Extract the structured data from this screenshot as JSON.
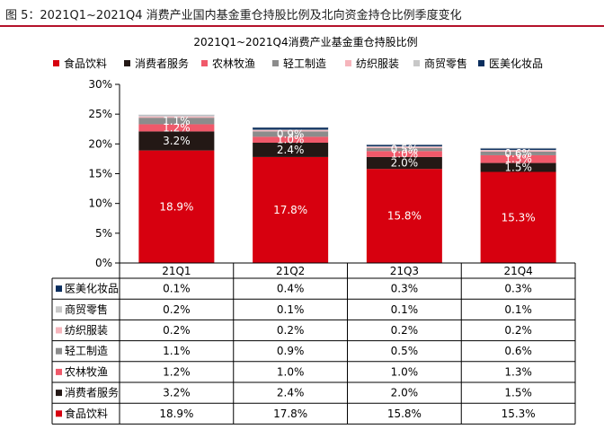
{
  "figure_caption": "图 5：2021Q1~2021Q4 消费产业国内基金重仓持股比例及北向资金持仓比例季度变化",
  "chart_data": {
    "type": "bar",
    "stacked": true,
    "title": "2021Q1~2021Q4消费产业基金重仓持股比例",
    "categories": [
      "21Q1",
      "21Q2",
      "21Q3",
      "21Q4"
    ],
    "ylim": [
      0,
      30
    ],
    "y_ticks": [
      "0%",
      "5%",
      "10%",
      "15%",
      "20%",
      "25%",
      "30%"
    ],
    "grid": false,
    "legend_position": "top",
    "series": [
      {
        "name": "食品饮料",
        "values": [
          18.9,
          17.8,
          15.8,
          15.3
        ],
        "labels": [
          "18.9%",
          "17.8%",
          "15.8%",
          "15.3%"
        ],
        "color": "#d7000f"
      },
      {
        "name": "消费者服务",
        "values": [
          3.2,
          2.4,
          2.0,
          1.5
        ],
        "labels": [
          "3.2%",
          "2.4%",
          "2.0%",
          "1.5%"
        ],
        "color": "#231815"
      },
      {
        "name": "农林牧渔",
        "values": [
          1.2,
          1.0,
          1.0,
          1.3
        ],
        "labels": [
          "1.2%",
          "1.0%",
          "1.0%",
          "1.3%"
        ],
        "color": "#f0596a"
      },
      {
        "name": "轻工制造",
        "values": [
          1.1,
          0.9,
          0.5,
          0.6
        ],
        "labels": [
          "1.1%",
          "0.9%",
          "0.5%",
          "0.6%"
        ],
        "color": "#8c8c8c"
      },
      {
        "name": "纺织服装",
        "values": [
          0.2,
          0.2,
          0.2,
          0.2
        ],
        "labels": [
          "0.2%",
          "0.2%",
          "0.2%",
          "0.2%"
        ],
        "color": "#f6b5bc"
      },
      {
        "name": "商贸零售",
        "values": [
          0.2,
          0.1,
          0.1,
          0.1
        ],
        "labels": [
          "0.2%",
          "0.1%",
          "0.1%",
          "0.1%"
        ],
        "color": "#c8c8c8"
      },
      {
        "name": "医美化妆品",
        "values": [
          0.1,
          0.4,
          0.3,
          0.3
        ],
        "labels": [
          "0.1%",
          "0.4%",
          "0.3%",
          "0.3%"
        ],
        "color": "#0b2e5e"
      }
    ]
  }
}
